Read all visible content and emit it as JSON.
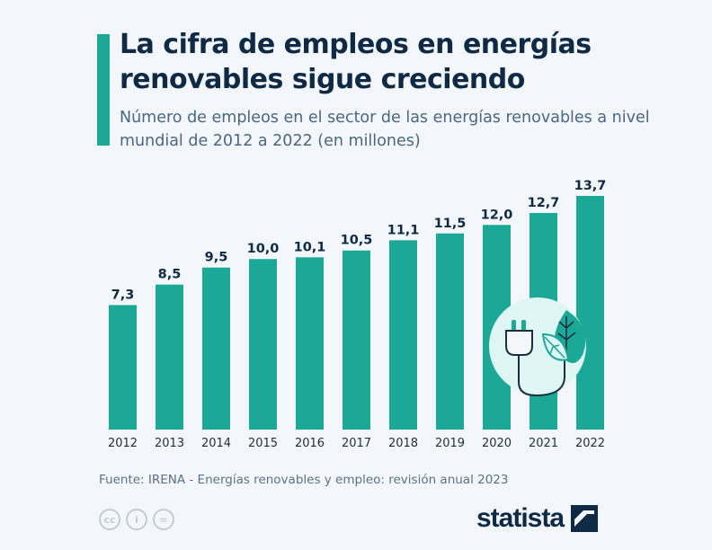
{
  "header": {
    "title": "La cifra de empleos en energías renovables sigue creciendo",
    "subtitle": "Número de empleos en el sector de las energías renovables a nivel mundial de 2012 a 2022 (en millones)"
  },
  "chart_data": {
    "type": "bar",
    "categories": [
      "2012",
      "2013",
      "2014",
      "2015",
      "2016",
      "2017",
      "2018",
      "2019",
      "2020",
      "2021",
      "2022"
    ],
    "values": [
      7.3,
      8.5,
      9.5,
      10.0,
      10.1,
      10.5,
      11.1,
      11.5,
      12.0,
      12.7,
      13.7
    ],
    "data_labels": [
      "7,3",
      "8,5",
      "9,5",
      "10,0",
      "10,1",
      "10,5",
      "11,1",
      "11,5",
      "12,0",
      "12,7",
      "13,7"
    ],
    "title": "La cifra de empleos en energías renovables sigue creciendo",
    "xlabel": "",
    "ylabel": "",
    "ylim": [
      0,
      13.7
    ],
    "grid": false,
    "bar_color": "#1ba896"
  },
  "footer": {
    "source": "Fuente: IRENA - Energías renovables y empleo: revisión anual 2023",
    "cc_icons": [
      "cc-icon",
      "attribution-icon",
      "no-derivatives-icon"
    ],
    "cc_labels": [
      "cc",
      "i",
      "="
    ],
    "logo": "statista"
  },
  "colors": {
    "accent": "#1ba896",
    "title": "#0f2a45",
    "background": "#f3f7fb"
  }
}
